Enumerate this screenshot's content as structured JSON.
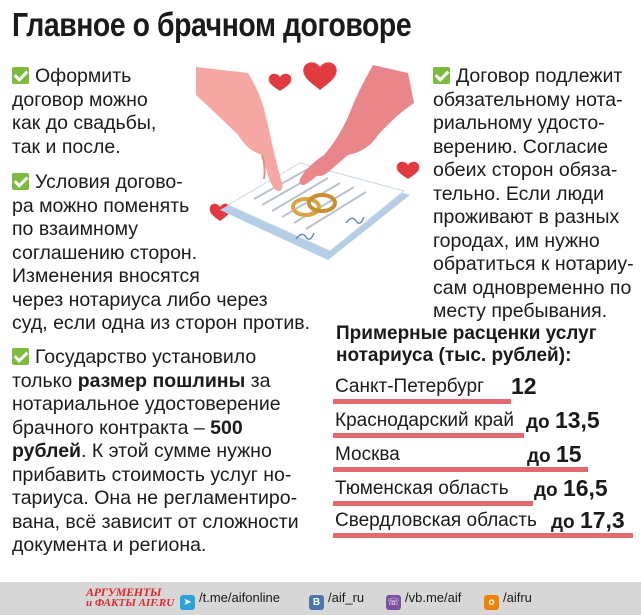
{
  "title": "Главное о брачном договоре",
  "blocks": {
    "b1": [
      "Оформить",
      "договор можно",
      "как до свадьбы,",
      "так и после."
    ],
    "b2": [
      "Условия догово-",
      "ра можно поменять",
      "по взаимному",
      "соглашению сторон.",
      "Изменения вносятся",
      "через нотариуса либо через",
      "суд, если одна из сторон против."
    ],
    "b3": {
      "l1": "Государство установило",
      "l2a": "только ",
      "l2b": "размер пошлины",
      "l2c": " за",
      "l3": "нотариальное удостоверение",
      "l4a": "брачного контракта – ",
      "l4b": "500",
      "l5a": "рублей",
      "l5b": ". К этой сумме нужно",
      "l6": "прибавить стоимость услуг но-",
      "l7": "тариуса. Она не регламентиро-",
      "l8": "вана, всё зависит от сложности",
      "l9": "документа и региона."
    },
    "b4": [
      "Договор подлежит",
      "обязательному нота-",
      "риальному удосто-",
      "верению. Согласие",
      "обеих сторон обяза-",
      "тельно. Если люди",
      "проживают в разных",
      "городах, им нужно",
      "обратиться к нотариу-",
      "сам одновременно по",
      "месту пребывания."
    ]
  },
  "prices": {
    "heading": [
      "Примерные расценки услуг",
      "нотариуса (тыс. рублей):"
    ],
    "rows": [
      {
        "name": "Санкт-Петербург",
        "prefix": "",
        "value": "12"
      },
      {
        "name": "Краснодарский край",
        "prefix": "до ",
        "value": "13,5"
      },
      {
        "name": "Москва",
        "prefix": "до ",
        "value": "15"
      },
      {
        "name": "Тюменская область",
        "prefix": "до ",
        "value": "16,5"
      },
      {
        "name": "Свердловская область",
        "prefix": "до ",
        "value": "17,3"
      }
    ]
  },
  "footer": {
    "logo_top": "АРГУМЕНТЫ",
    "logo_bottom": "и ФАКТЫ AIF.RU",
    "telegram": "/t.me/aifonline",
    "vk": "/aif_ru",
    "viber": "/vb.me/aif",
    "ok": "/aifru"
  },
  "colors": {
    "accent": "#e06a6e",
    "check": "#7dbb3d",
    "logo": "#e1262c"
  }
}
